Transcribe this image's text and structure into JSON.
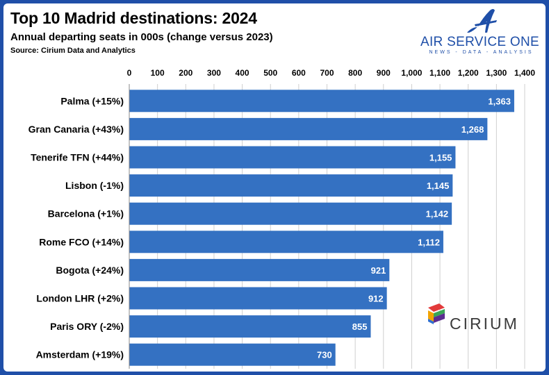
{
  "header": {
    "title": "Top 10 Madrid destinations: 2024",
    "subtitle": "Annual departing seats in 000s (change versus 2023)",
    "source": "Source: Cirium Data and Analytics"
  },
  "brand": {
    "name": "AIR SERVICE ONE",
    "tagline": "NEWS - DATA - ANALYSIS",
    "color": "#1f4fa8"
  },
  "partner": {
    "name": "CIRIUM"
  },
  "colors": {
    "bar": "#3471c2",
    "frame": "#1f4fa8",
    "grid": "#cfcfcf"
  },
  "chart_data": {
    "type": "bar",
    "orientation": "horizontal",
    "title": "Top 10 Madrid destinations: 2024",
    "subtitle": "Annual departing seats in 000s (change versus 2023)",
    "categories": [
      "Palma (+15%)",
      "Gran Canaria (+43%)",
      "Tenerife TFN (+44%)",
      "Lisbon (-1%)",
      "Barcelona (+1%)",
      "Rome FCO (+14%)",
      "Bogota (+24%)",
      "London LHR (+2%)",
      "Paris ORY (-2%)",
      "Amsterdam (+19%)"
    ],
    "values": [
      1363,
      1268,
      1155,
      1145,
      1142,
      1112,
      921,
      912,
      855,
      730
    ],
    "value_labels": [
      "1,363",
      "1,268",
      "1,155",
      "1,145",
      "1,142",
      "1,112",
      "921",
      "912",
      "855",
      "730"
    ],
    "xlim": [
      0,
      1400
    ],
    "xticks": [
      "0",
      "100",
      "200",
      "300",
      "400",
      "500",
      "600",
      "700",
      "800",
      "900",
      "1,000",
      "1,100",
      "1,200",
      "1,300",
      "1,400"
    ],
    "x_axis_position": "top",
    "grid": true
  }
}
